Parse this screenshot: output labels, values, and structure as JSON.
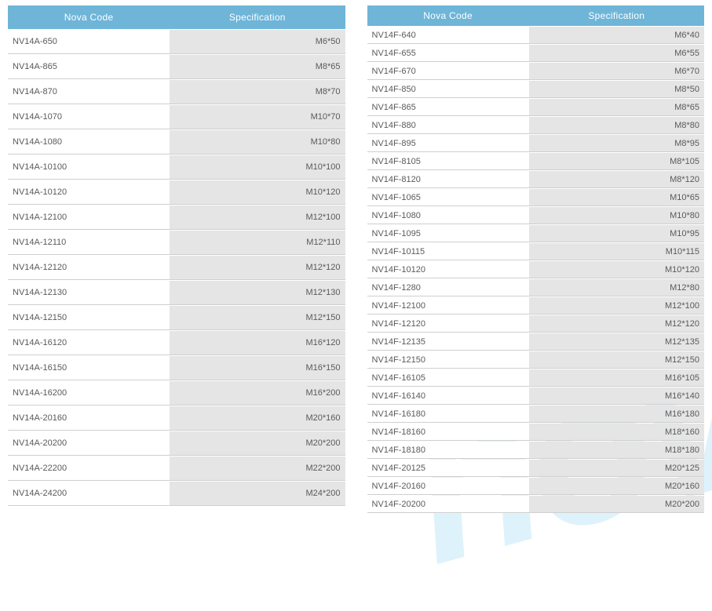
{
  "columns": {
    "code": "Nova Code",
    "spec": "Specification"
  },
  "leftTable": {
    "rows": [
      {
        "code": "NV14A-650",
        "spec": "M6*50"
      },
      {
        "code": "NV14A-865",
        "spec": "M8*65"
      },
      {
        "code": "NV14A-870",
        "spec": "M8*70"
      },
      {
        "code": "NV14A-1070",
        "spec": "M10*70"
      },
      {
        "code": "NV14A-1080",
        "spec": "M10*80"
      },
      {
        "code": "NV14A-10100",
        "spec": "M10*100"
      },
      {
        "code": "NV14A-10120",
        "spec": "M10*120"
      },
      {
        "code": "NV14A-12100",
        "spec": "M12*100"
      },
      {
        "code": "NV14A-12110",
        "spec": "M12*110"
      },
      {
        "code": "NV14A-12120",
        "spec": "M12*120"
      },
      {
        "code": "NV14A-12130",
        "spec": "M12*130"
      },
      {
        "code": "NV14A-12150",
        "spec": "M12*150"
      },
      {
        "code": "NV14A-16120",
        "spec": "M16*120"
      },
      {
        "code": "NV14A-16150",
        "spec": "M16*150"
      },
      {
        "code": "NV14A-16200",
        "spec": "M16*200"
      },
      {
        "code": "NV14A-20160",
        "spec": "M20*160"
      },
      {
        "code": "NV14A-20200",
        "spec": "M20*200"
      },
      {
        "code": "NV14A-22200",
        "spec": "M22*200"
      },
      {
        "code": "NV14A-24200",
        "spec": "M24*200"
      }
    ]
  },
  "rightTable": {
    "rows": [
      {
        "code": "NV14F-640",
        "spec": "M6*40"
      },
      {
        "code": "NV14F-655",
        "spec": "M6*55"
      },
      {
        "code": "NV14F-670",
        "spec": "M6*70"
      },
      {
        "code": "NV14F-850",
        "spec": "M8*50"
      },
      {
        "code": "NV14F-865",
        "spec": "M8*65"
      },
      {
        "code": "NV14F-880",
        "spec": "M8*80"
      },
      {
        "code": "NV14F-895",
        "spec": "M8*95"
      },
      {
        "code": "NV14F-8105",
        "spec": "M8*105"
      },
      {
        "code": "NV14F-8120",
        "spec": "M8*120"
      },
      {
        "code": "NV14F-1065",
        "spec": "M10*65"
      },
      {
        "code": "NV14F-1080",
        "spec": "M10*80"
      },
      {
        "code": "NV14F-1095",
        "spec": "M10*95"
      },
      {
        "code": "NV14F-10115",
        "spec": "M10*115"
      },
      {
        "code": "NV14F-10120",
        "spec": "M10*120"
      },
      {
        "code": "NV14F-1280",
        "spec": "M12*80"
      },
      {
        "code": "NV14F-12100",
        "spec": "M12*100"
      },
      {
        "code": "NV14F-12120",
        "spec": "M12*120"
      },
      {
        "code": "NV14F-12135",
        "spec": "M12*135"
      },
      {
        "code": "NV14F-12150",
        "spec": "M12*150"
      },
      {
        "code": "NV14F-16105",
        "spec": "M16*105"
      },
      {
        "code": "NV14F-16140",
        "spec": "M16*140"
      },
      {
        "code": "NV14F-16180",
        "spec": "M16*180"
      },
      {
        "code": "NV14F-18160",
        "spec": "M18*160"
      },
      {
        "code": "NV14F-18180",
        "spec": "M18*180"
      },
      {
        "code": "NV14F-20125",
        "spec": "M20*125"
      },
      {
        "code": "NV14F-20160",
        "spec": "M20*160"
      },
      {
        "code": "NV14F-20200",
        "spec": "M20*200"
      }
    ]
  },
  "style": {
    "header_bg": "#6eb5d8",
    "header_text": "#ffffff",
    "row_border": "#cfcfcf",
    "spec_bg": "#e5e5e5",
    "code_bg": "#ffffff",
    "text_color": "#5a5a5a",
    "watermark_color": "rgba(74,182,232,0.18)",
    "header_fontsize": 12,
    "cell_fontsize": 11
  }
}
